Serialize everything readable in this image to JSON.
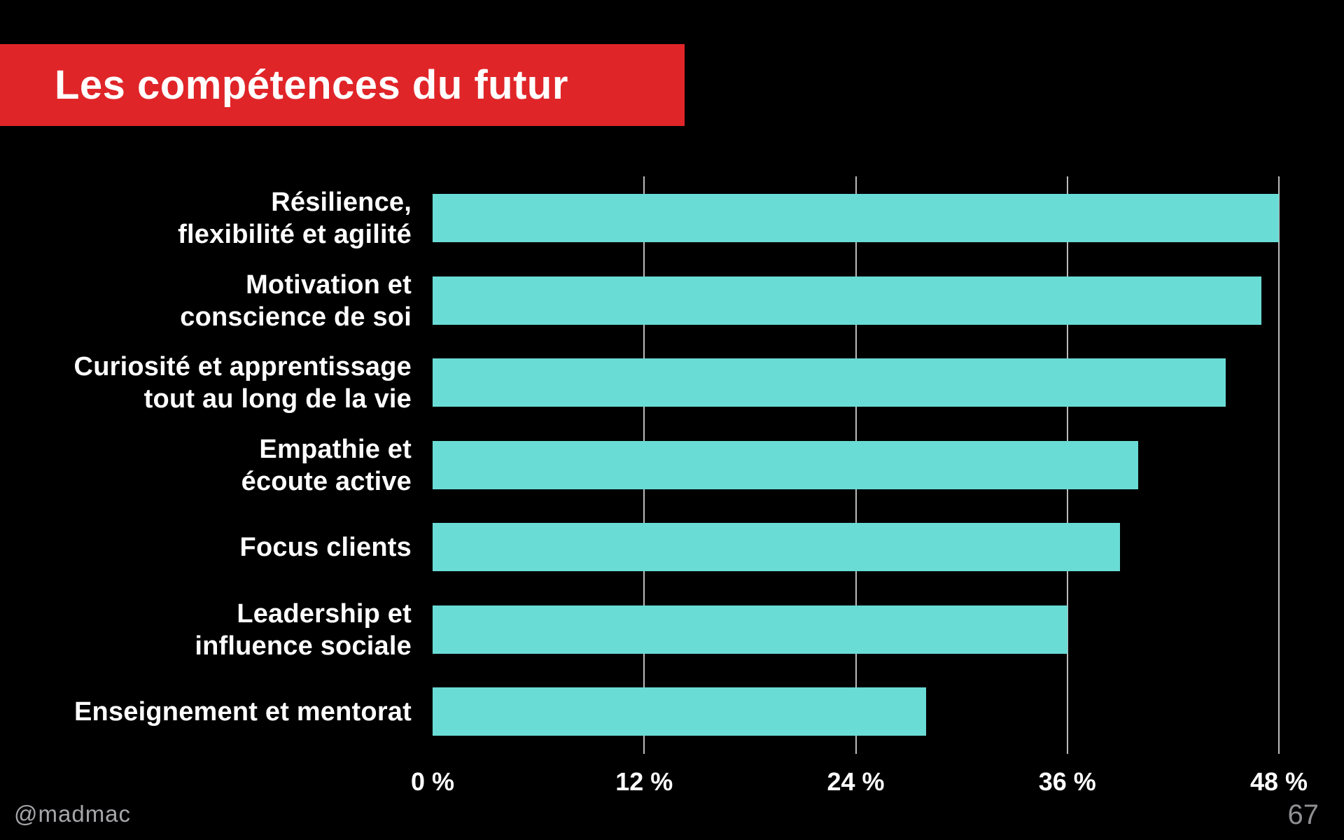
{
  "slide": {
    "title": "Les compétences du futur",
    "footer_handle": "@madmac",
    "page_number": "67"
  },
  "colors": {
    "background": "#000000",
    "banner_red": "#e02529",
    "bar_teal": "#6adcd6",
    "gridline_gray": "#cfcfcf",
    "text_white": "#ffffff",
    "footer_gray": "#a6a6aa",
    "page_number_gray": "#909094"
  },
  "chart_data": {
    "type": "bar",
    "orientation": "horizontal",
    "title": "Les compétences du futur",
    "categories": [
      "Résilience, flexibilité et agilité",
      "Motivation et conscience de soi",
      "Curiosité et apprentissage tout au long de la vie",
      "Empathie et écoute active",
      "Focus clients",
      "Leadership et influence sociale",
      "Enseignement et mentorat"
    ],
    "category_lines": [
      [
        "Résilience,",
        "flexibilité et agilité"
      ],
      [
        "Motivation et",
        "conscience de soi"
      ],
      [
        "Curiosité et apprentissage",
        "tout au long de la vie"
      ],
      [
        "Empathie et",
        "écoute active"
      ],
      [
        "Focus clients"
      ],
      [
        "Leadership et",
        "influence sociale"
      ],
      [
        "Enseignement et mentorat"
      ]
    ],
    "values": [
      48,
      47,
      45,
      40,
      39,
      36,
      28
    ],
    "unit": "%",
    "xlabel": "",
    "ylabel": "",
    "xlim": [
      0,
      48
    ],
    "x_tick_values": [
      0,
      12,
      24,
      36,
      48
    ],
    "x_tick_labels": [
      "0 %",
      "12 %",
      "24 %",
      "36 %",
      "48 %"
    ],
    "grid": "vertical gridlines at 12, 24, 36, 48 only (none at 0)",
    "legend": "none"
  }
}
